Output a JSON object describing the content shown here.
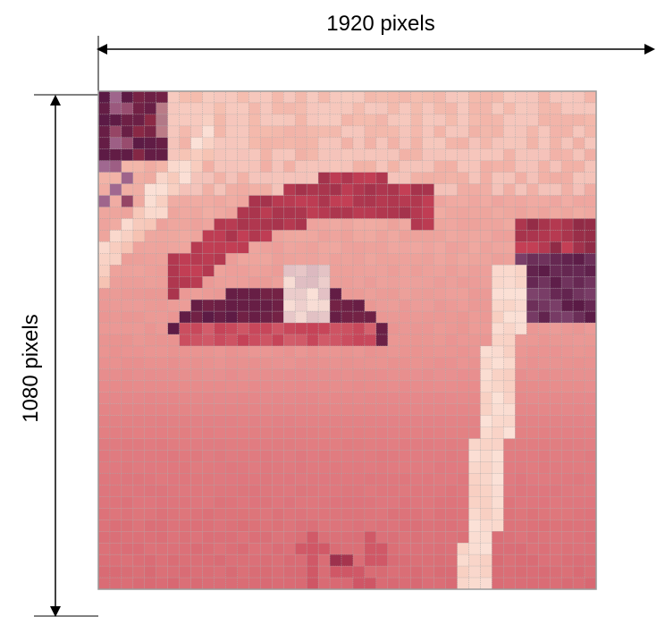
{
  "dimensions": {
    "width_label": "1920 pixels",
    "height_label": "1080 pixels"
  },
  "pixel_grid": {
    "columns": 43,
    "rows": 43,
    "gridline_color": "#a7a7a7",
    "palette": {
      "dark_purple": "#5a1a45",
      "deep_red": "#8e2a45",
      "crimson": "#c43f55",
      "salmon": "#e58486",
      "pink": "#f1aba4",
      "peach": "#f6c2b2",
      "cream": "#fbe1d7",
      "mauve": "#a06a92"
    },
    "fill": "mosaic of a close-up eye rendered as large square pixels"
  },
  "colors": {
    "line": "#000000",
    "border": "#9a9a9a"
  }
}
